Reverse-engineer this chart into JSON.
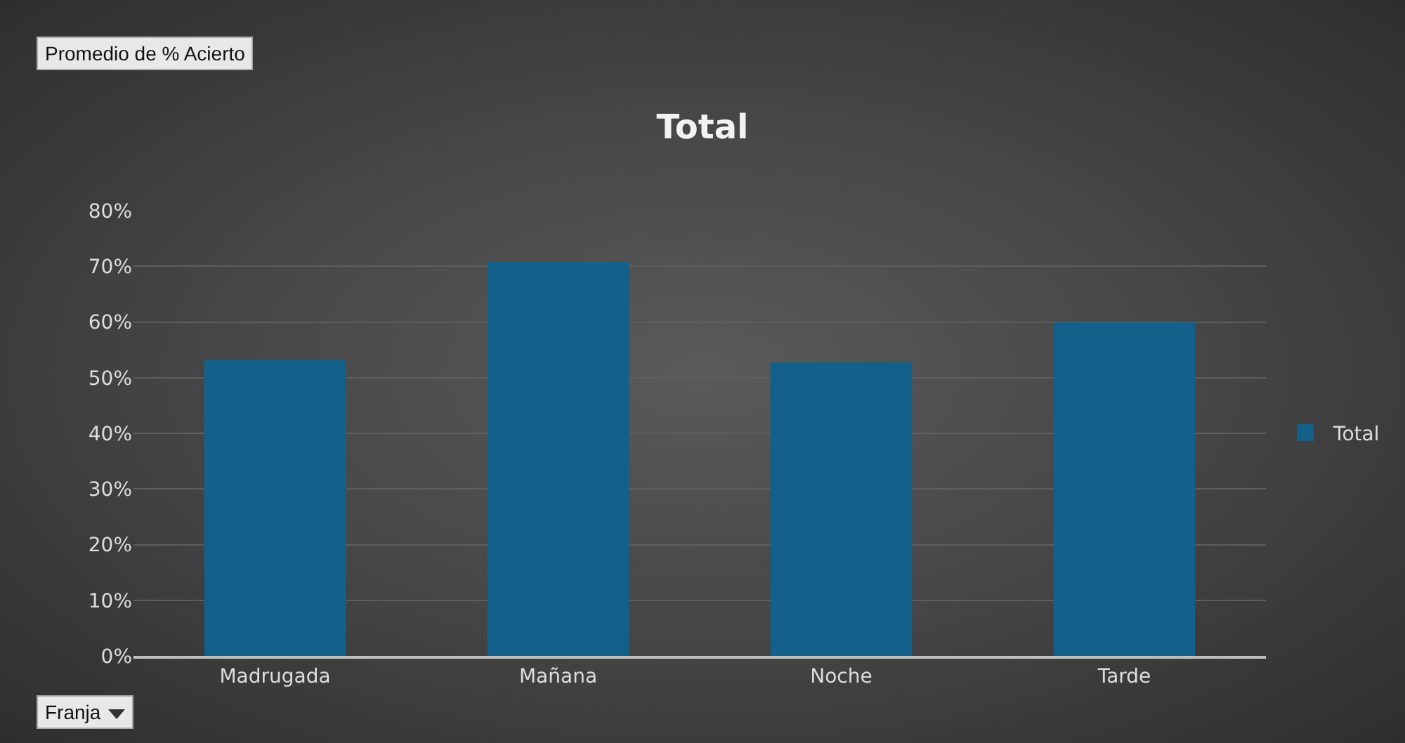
{
  "chart_data": {
    "type": "bar",
    "title": "Total",
    "categories": [
      "Madrugada",
      "Mañana",
      "Noche",
      "Tarde"
    ],
    "series": [
      {
        "name": "Total",
        "color": "#13618a",
        "values": [
          53.2,
          70.8,
          52.7,
          59.9
        ]
      }
    ],
    "ylim": [
      0,
      80
    ],
    "yticks": [
      {
        "value": 0,
        "label": "0%"
      },
      {
        "value": 10,
        "label": "10%"
      },
      {
        "value": 20,
        "label": "20%"
      },
      {
        "value": 30,
        "label": "30%"
      },
      {
        "value": 40,
        "label": "40%"
      },
      {
        "value": 50,
        "label": "50%"
      },
      {
        "value": 60,
        "label": "60%"
      },
      {
        "value": 70,
        "label": "70%"
      },
      {
        "value": 80,
        "label": "80%"
      }
    ],
    "grid": "y",
    "legend": "right",
    "annotations": [
      "Promedio de % Acierto",
      "Franja"
    ]
  }
}
